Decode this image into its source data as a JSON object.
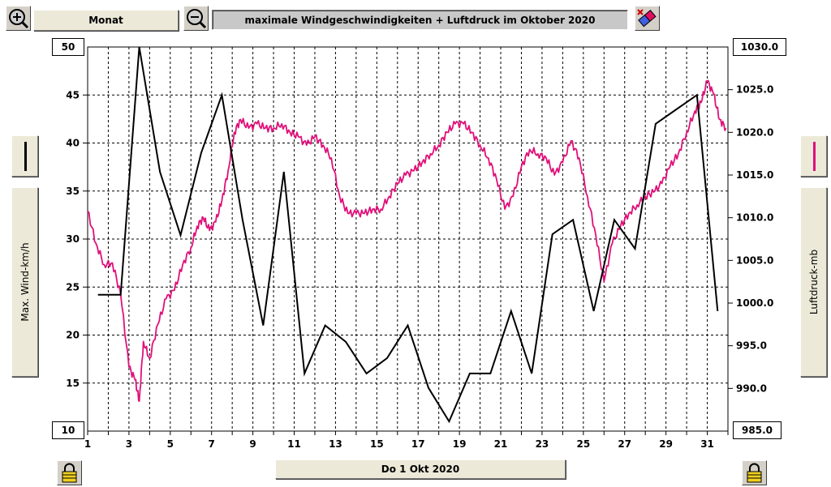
{
  "toolbar": {
    "period_label": "Monat",
    "zoom_in_icon": "zoom-in-magnifier-icon",
    "zoom_out_icon": "zoom-out-magnifier-icon",
    "eraser_icon": "eraser-icon",
    "lock_icon": "padlock-icon"
  },
  "header": {
    "title": "maximale Windgeschwindigkeiten + Luftdruck im Oktober 2020"
  },
  "footer": {
    "date_label": "Do 1 Okt 2020"
  },
  "axes": {
    "left": {
      "label": "Max. Wind-km/h",
      "top_value": "50",
      "bottom_value": "10",
      "tick_labels": [
        "45",
        "40",
        "35",
        "30",
        "25",
        "20",
        "15"
      ],
      "line_color": "#000000"
    },
    "right": {
      "label": "Luftdruck-mb",
      "top_value": "1030.0",
      "bottom_value": "985.0",
      "tick_labels": [
        "1025.0",
        "1020.0",
        "1015.0",
        "1010.0",
        "1005.0",
        "1000.0",
        "995.0",
        "990.0"
      ],
      "line_color": "#e0107a"
    }
  },
  "chart_data": {
    "type": "line",
    "title": "maximale Windgeschwindigkeiten + Luftdruck im Oktober 2020",
    "xlabel": "",
    "x_tick_labels": [
      "1",
      "3",
      "5",
      "7",
      "9",
      "11",
      "13",
      "15",
      "17",
      "19",
      "21",
      "23",
      "25",
      "27",
      "29",
      "31"
    ],
    "xlim": [
      1,
      32
    ],
    "grid": true,
    "series": [
      {
        "name": "Max. Wind-km/h",
        "axis": "left",
        "ylim": [
          10,
          50
        ],
        "color": "#000000",
        "x": [
          1.5,
          2.6,
          3.5,
          4.5,
          5.5,
          6.5,
          7.5,
          8.5,
          9.5,
          10.5,
          11.5,
          12.5,
          13.5,
          14.5,
          15.5,
          16.5,
          17.5,
          18.5,
          19.5,
          20.5,
          21.5,
          22.5,
          23.5,
          24.5,
          25.5,
          26.5,
          27.5,
          28.5,
          29.5,
          30.5,
          31.5
        ],
        "values": [
          24.2,
          24.2,
          50,
          37,
          30.4,
          39,
          45,
          32,
          21,
          37,
          16,
          21,
          19.3,
          16,
          17.6,
          21,
          14.5,
          11,
          16,
          16,
          22.5,
          16,
          30.5,
          32,
          22.5,
          32,
          29,
          42,
          43.5,
          45,
          22.5
        ]
      },
      {
        "name": "Luftdruck-mb",
        "axis": "right",
        "ylim": [
          985,
          1030
        ],
        "color": "#e0107a",
        "x": [
          1,
          1.4,
          1.8,
          2.2,
          2.6,
          3.0,
          3.3,
          3.5,
          3.7,
          4.0,
          4.4,
          4.8,
          5.2,
          5.6,
          6.0,
          6.3,
          6.6,
          6.9,
          7.2,
          7.5,
          7.8,
          8.1,
          8.4,
          8.8,
          9.2,
          9.6,
          10.0,
          10.4,
          10.8,
          11.2,
          11.6,
          12.0,
          12.4,
          12.8,
          13.2,
          13.6,
          14.0,
          14.4,
          14.8,
          15.2,
          15.6,
          16.0,
          16.4,
          16.8,
          17.2,
          17.6,
          18.0,
          18.4,
          18.8,
          19.2,
          19.6,
          20.0,
          20.4,
          20.8,
          21.2,
          21.6,
          22.0,
          22.4,
          22.8,
          23.2,
          23.6,
          24.0,
          24.4,
          24.8,
          25.2,
          25.6,
          26.0,
          26.4,
          26.8,
          27.2,
          27.6,
          28.0,
          28.4,
          28.8,
          29.2,
          29.6,
          30.0,
          30.4,
          30.7,
          31.0,
          31.3,
          31.6,
          31.9
        ],
        "values": [
          1010.8,
          1007,
          1004.5,
          1004.7,
          1001,
          992.5,
          991,
          988.5,
          995.5,
          993.5,
          997.5,
          1000.5,
          1001.5,
          1004.5,
          1006.5,
          1009,
          1010,
          1008.5,
          1009.5,
          1012,
          1015.5,
          1020,
          1021.5,
          1020.5,
          1021,
          1020.5,
          1020.5,
          1021,
          1020,
          1019.5,
          1018.5,
          1019.5,
          1018.5,
          1017,
          1012.5,
          1010.5,
          1010.5,
          1010.5,
          1011,
          1011,
          1012.5,
          1014,
          1015,
          1015.5,
          1016.5,
          1017.5,
          1018.5,
          1020,
          1021,
          1021,
          1020,
          1018.5,
          1017,
          1014.5,
          1011,
          1012.5,
          1016,
          1018,
          1017.5,
          1017,
          1015,
          1016.5,
          1019,
          1017,
          1012.5,
          1008,
          1002.5,
          1007,
          1009,
          1010.5,
          1011.5,
          1012.5,
          1013,
          1014,
          1016,
          1017.5,
          1020,
          1022.5,
          1023.5,
          1026,
          1024.5,
          1021.5,
          1020.5
        ]
      }
    ]
  }
}
